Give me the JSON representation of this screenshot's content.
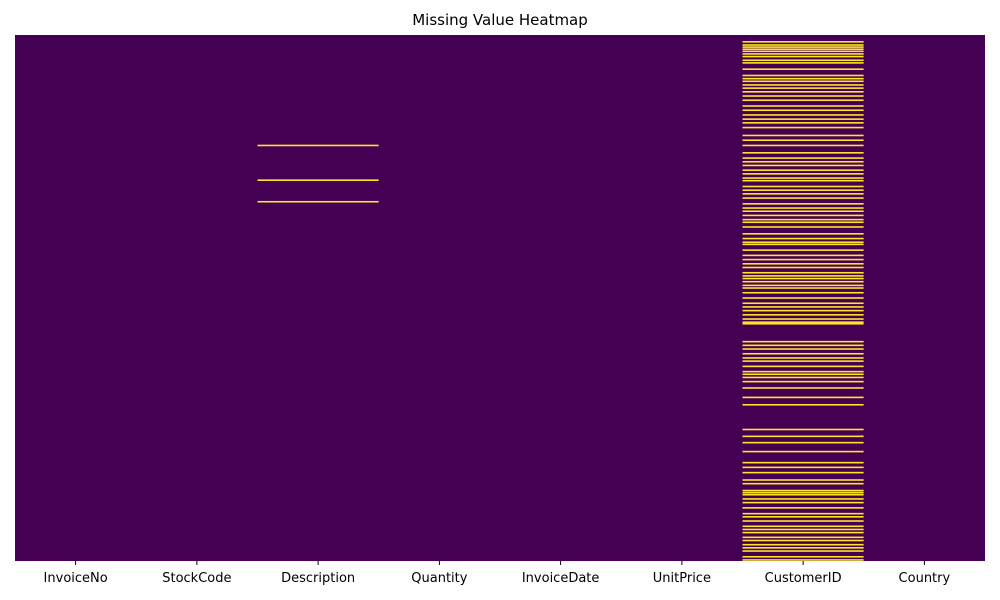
{
  "chart_data": {
    "type": "heatmap",
    "title": "Missing Value Heatmap",
    "xlabel": "",
    "ylabel": "",
    "columns": [
      "InvoiceNo",
      "StockCode",
      "Description",
      "Quantity",
      "InvoiceDate",
      "UnitPrice",
      "CustomerID",
      "Country"
    ],
    "colormap": "viridis",
    "colors": {
      "present": "#440154",
      "missing": "#fde725"
    },
    "row_range": [
      0,
      1
    ],
    "missing_rows": {
      "Description": [
        0.21,
        0.276,
        0.317
      ],
      "CustomerID": [
        0.013,
        0.019,
        0.023,
        0.027,
        0.031,
        0.036,
        0.041,
        0.048,
        0.053,
        0.065,
        0.077,
        0.083,
        0.088,
        0.095,
        0.101,
        0.108,
        0.116,
        0.124,
        0.135,
        0.143,
        0.152,
        0.16,
        0.167,
        0.176,
        0.191,
        0.2,
        0.21,
        0.224,
        0.234,
        0.241,
        0.248,
        0.257,
        0.264,
        0.272,
        0.277,
        0.288,
        0.295,
        0.302,
        0.31,
        0.321,
        0.329,
        0.335,
        0.343,
        0.351,
        0.356,
        0.365,
        0.378,
        0.387,
        0.394,
        0.398,
        0.409,
        0.419,
        0.427,
        0.435,
        0.442,
        0.452,
        0.458,
        0.463,
        0.469,
        0.476,
        0.481,
        0.49,
        0.5,
        0.51,
        0.517,
        0.524,
        0.532,
        0.54,
        0.546,
        0.549,
        0.583,
        0.59,
        0.597,
        0.606,
        0.614,
        0.62,
        0.63,
        0.64,
        0.645,
        0.651,
        0.659,
        0.671,
        0.689,
        0.703,
        0.75,
        0.763,
        0.775,
        0.792,
        0.813,
        0.822,
        0.832,
        0.846,
        0.853,
        0.866,
        0.87,
        0.874,
        0.882,
        0.889,
        0.899,
        0.91,
        0.916,
        0.924,
        0.934,
        0.94,
        0.946,
        0.955,
        0.961,
        0.969,
        0.975,
        0.981,
        0.992,
        0.998
      ]
    },
    "grid": false,
    "legend": "none"
  }
}
